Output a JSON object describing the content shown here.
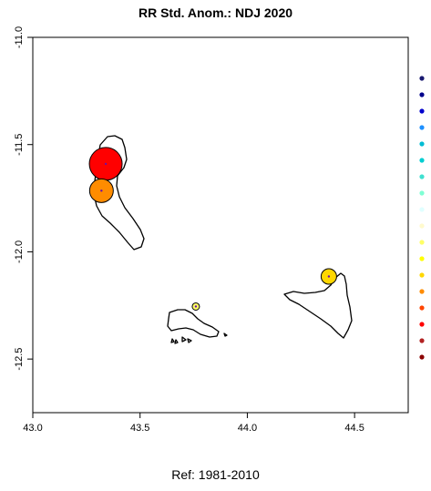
{
  "chart_data": {
    "type": "scatter",
    "title": "RR Std. Anom.: NDJ 2020",
    "footer": "Ref: 1981-2010",
    "xlabel": "",
    "ylabel": "",
    "xlim": [
      43.0,
      44.75
    ],
    "ylim": [
      -12.75,
      -11.0
    ],
    "x_ticks": [
      43.0,
      43.5,
      44.0,
      44.5
    ],
    "x_tick_labels": [
      "43.0",
      "43.5",
      "44.0",
      "44.5"
    ],
    "y_ticks": [
      -11.0,
      -11.5,
      -12.0,
      -12.5
    ],
    "y_tick_labels": [
      "-11.0",
      "-11.5",
      "-12.0",
      "-12.5"
    ],
    "grid": false,
    "points": [
      {
        "x": 43.34,
        "y": -11.59,
        "size": "large",
        "color": "#ff0000"
      },
      {
        "x": 43.32,
        "y": -11.715,
        "size": "medium",
        "color": "#ff8c00"
      },
      {
        "x": 44.38,
        "y": -12.115,
        "size": "small",
        "color": "#ffd700"
      },
      {
        "x": 43.76,
        "y": -12.255,
        "size": "tiny",
        "color": "#ffff66"
      }
    ],
    "legend_colors": [
      "#191970",
      "#00008b",
      "#0000cd",
      "#1e90ff",
      "#00bcd4",
      "#00ced1",
      "#40e0d0",
      "#7fffd4",
      "#e0ffff",
      "#fffacd",
      "#ffff66",
      "#ffff00",
      "#ffd700",
      "#ff8c00",
      "#ff4500",
      "#ff0000",
      "#b22222",
      "#8b0000"
    ]
  }
}
